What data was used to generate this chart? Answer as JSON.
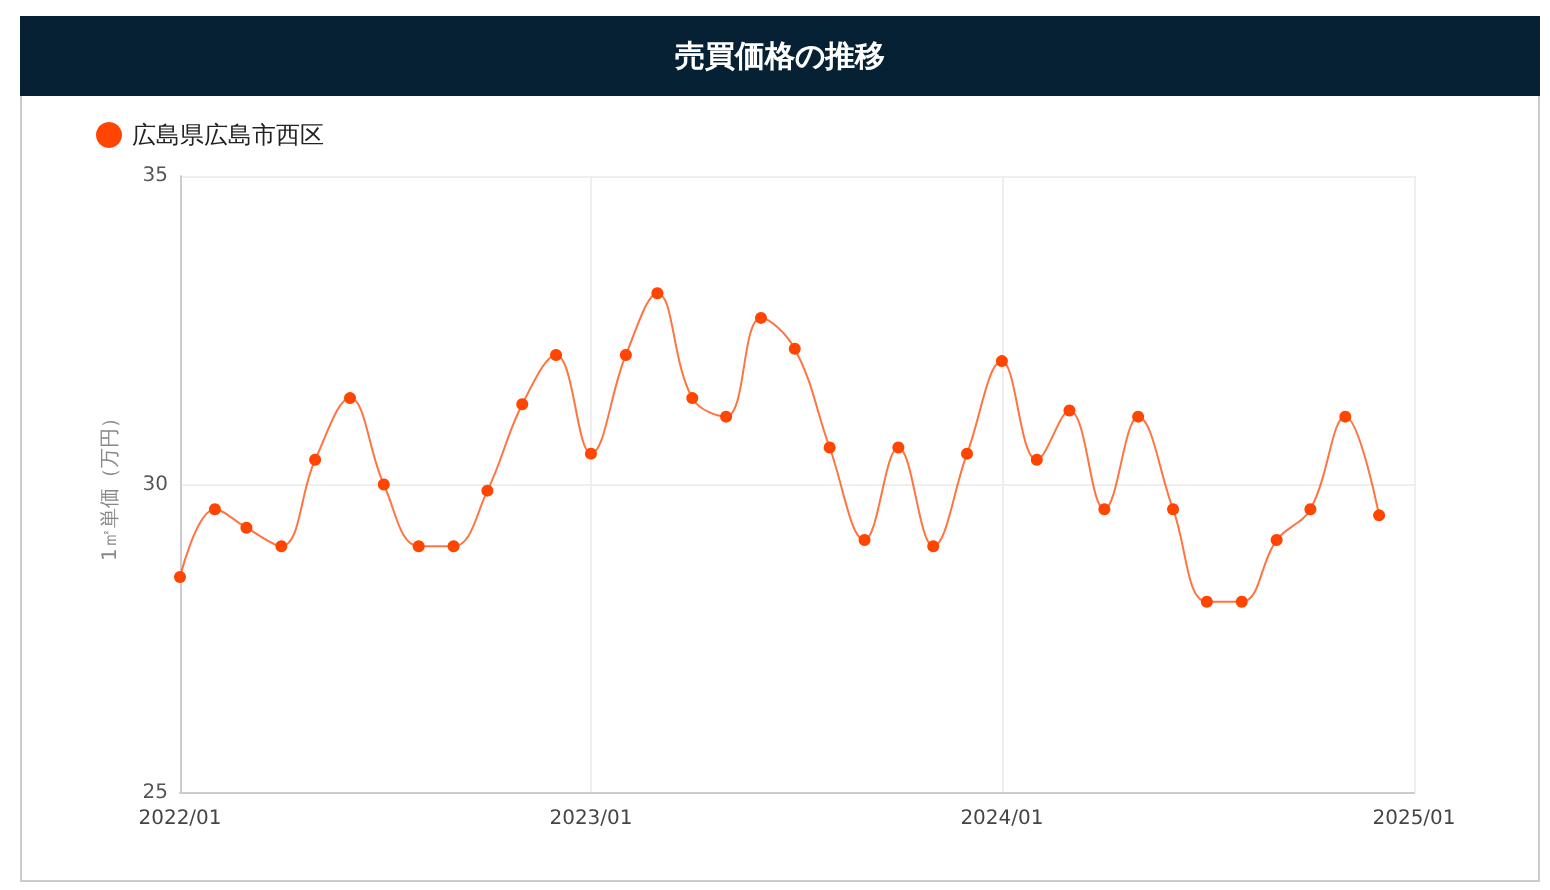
{
  "chart_data": {
    "type": "line",
    "title": "売買価格の推移",
    "ylabel": "1㎡単価（万円）",
    "x": [
      "2022-01",
      "2022-02",
      "2022-03",
      "2022-04",
      "2022-05",
      "2022-06",
      "2022-07",
      "2022-08",
      "2022-09",
      "2022-10",
      "2022-11",
      "2022-12",
      "2023-01",
      "2023-02",
      "2023-03",
      "2023-04",
      "2023-05",
      "2023-06",
      "2023-07",
      "2023-08",
      "2023-09",
      "2023-10",
      "2023-11",
      "2023-12",
      "2024-01",
      "2024-02",
      "2024-03",
      "2024-04",
      "2024-05",
      "2024-06",
      "2024-07",
      "2024-08",
      "2024-09",
      "2024-10",
      "2024-11",
      "2024-12"
    ],
    "series": [
      {
        "name": "広島県広島市西区",
        "color": "#ff4500",
        "values": [
          28.5,
          29.6,
          29.3,
          29.0,
          30.4,
          31.4,
          30.0,
          29.0,
          29.0,
          29.9,
          31.3,
          32.1,
          30.5,
          32.1,
          33.1,
          31.4,
          31.1,
          32.7,
          32.2,
          30.6,
          29.1,
          30.6,
          29.0,
          30.5,
          32.0,
          30.4,
          31.2,
          29.6,
          31.1,
          29.6,
          28.1,
          28.1,
          29.1,
          29.6,
          31.1,
          29.5
        ]
      }
    ],
    "xlim": [
      "2022-01",
      "2025-01"
    ],
    "xticks": [
      {
        "value": "2022-01",
        "label": "2022/01"
      },
      {
        "value": "2023-01",
        "label": "2023/01"
      },
      {
        "value": "2024-01",
        "label": "2024/01"
      },
      {
        "value": "2025-01",
        "label": "2025/01"
      }
    ],
    "ylim": [
      25,
      35
    ],
    "yticks": [
      25,
      30,
      35
    ],
    "grid": true,
    "legend": "top left",
    "marker": "circle",
    "line_style": "solid"
  }
}
